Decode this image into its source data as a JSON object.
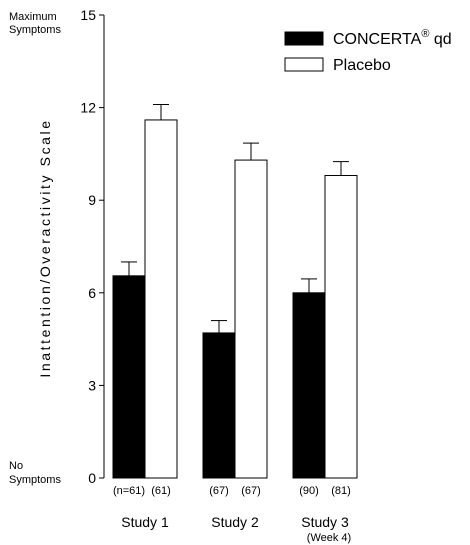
{
  "chart_data": {
    "type": "bar",
    "title": "",
    "ylabel": "Inattention/Overactivity Scale",
    "xlabel": "",
    "ylim": [
      0,
      15
    ],
    "yticks": [
      0,
      3,
      6,
      9,
      12,
      15
    ],
    "ytick_labels": [
      "0",
      "3",
      "6",
      "9",
      "12",
      "15"
    ],
    "top_annotation": [
      "Maximum",
      "Symptoms"
    ],
    "bottom_annotation": [
      "No",
      "Symptoms"
    ],
    "categories": [
      "Study 1",
      "Study 2",
      "Study 3"
    ],
    "category_sublabels": [
      "",
      "",
      "(Week 4)"
    ],
    "series": [
      {
        "name": "CONCERTA",
        "name_superscript": "®",
        "name_suffix": " qd",
        "color": "#000000",
        "values": [
          6.55,
          4.7,
          6.0
        ],
        "errors": [
          0.45,
          0.4,
          0.45
        ],
        "n_labels": [
          "(n=61)",
          "(67)",
          "(90)"
        ]
      },
      {
        "name": "Placebo",
        "color": "#ffffff",
        "values": [
          11.6,
          10.3,
          9.8
        ],
        "errors": [
          0.5,
          0.55,
          0.45
        ],
        "n_labels": [
          "(61)",
          "(67)",
          "(81)"
        ]
      }
    ],
    "legend_position": "top-right",
    "grid": false
  }
}
